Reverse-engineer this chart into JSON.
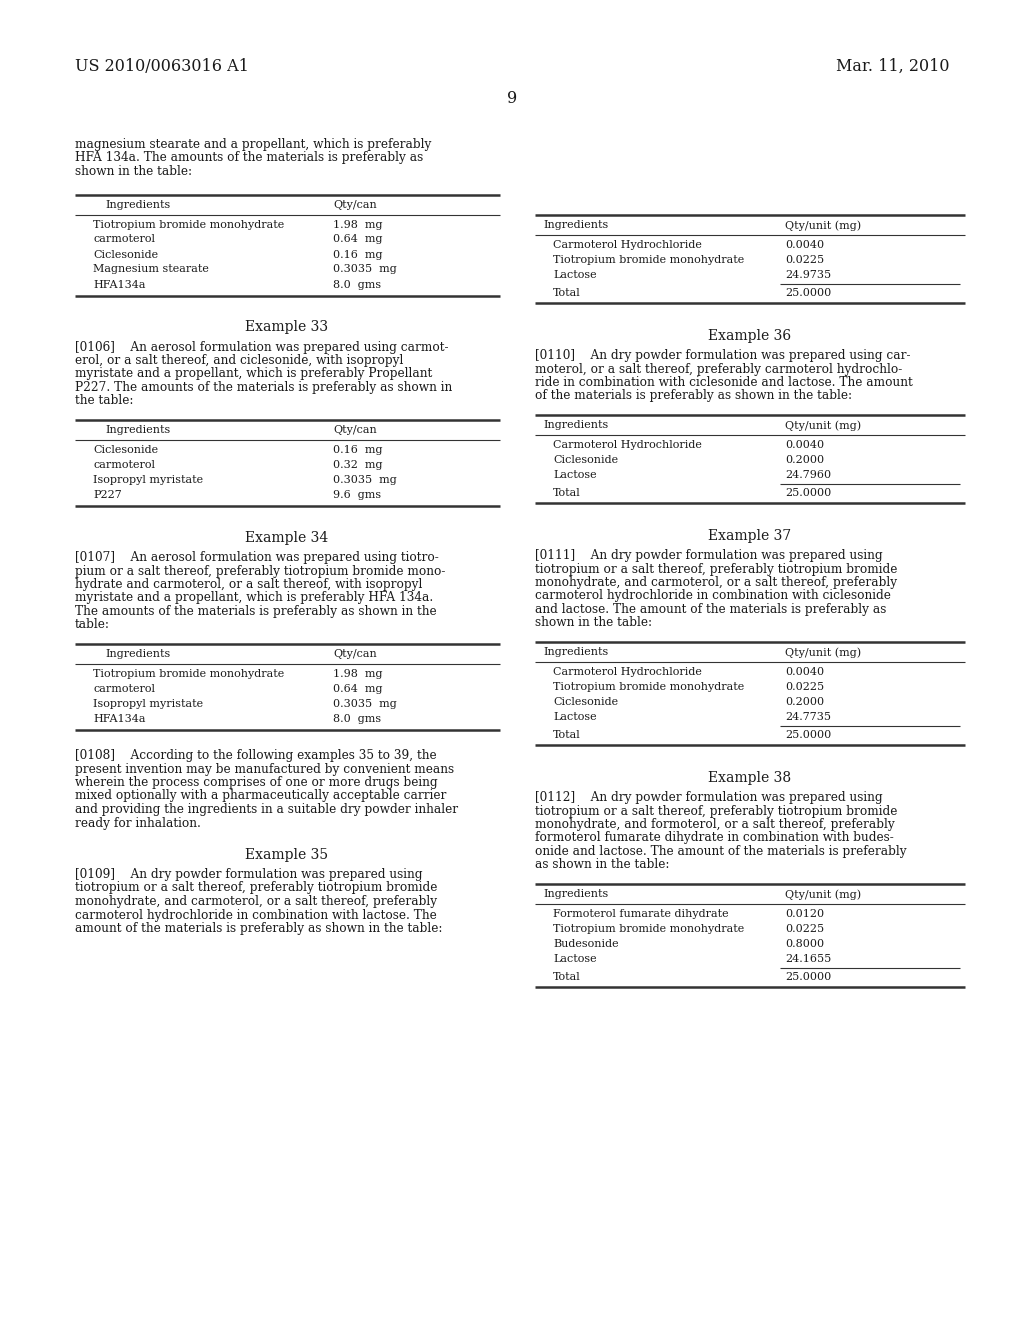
{
  "bg_color": "#ffffff",
  "header_left": "US 2010/0063016 A1",
  "header_right": "Mar. 11, 2010",
  "page_number": "9",
  "left_column": {
    "intro_text": [
      "magnesium stearate and a propellant, which is preferably",
      "HFA 134a. The amounts of the materials is preferably as",
      "shown in the table:"
    ],
    "table1": {
      "header": [
        "Ingredients",
        "Qty/can"
      ],
      "rows": [
        [
          "Tiotropium bromide monohydrate",
          "1.98  mg"
        ],
        [
          "carmoterol",
          "0.64  mg"
        ],
        [
          "Ciclesonide",
          "0.16  mg"
        ],
        [
          "Magnesium stearate",
          "0.3035  mg"
        ],
        [
          "HFA134a",
          "8.0  gms"
        ]
      ]
    },
    "example33_title": "Example 33",
    "para33_lines": [
      "[0106]    An aerosol formulation was prepared using carmot-",
      "erol, or a salt thereof, and ciclesonide, with isopropyl",
      "myristate and a propellant, which is preferably Propellant",
      "P227. The amounts of the materials is preferably as shown in",
      "the table:"
    ],
    "table2": {
      "header": [
        "Ingredients",
        "Qty/can"
      ],
      "rows": [
        [
          "Ciclesonide",
          "0.16  mg"
        ],
        [
          "carmoterol",
          "0.32  mg"
        ],
        [
          "Isopropyl myristate",
          "0.3035  mg"
        ],
        [
          "P227",
          "9.6  gms"
        ]
      ]
    },
    "example34_title": "Example 34",
    "para34_lines": [
      "[0107]    An aerosol formulation was prepared using tiotro-",
      "pium or a salt thereof, preferably tiotropium bromide mono-",
      "hydrate and carmoterol, or a salt thereof, with isopropyl",
      "myristate and a propellant, which is preferably HFA 134a.",
      "The amounts of the materials is preferably as shown in the",
      "table:"
    ],
    "table3": {
      "header": [
        "Ingredients",
        "Qty/can"
      ],
      "rows": [
        [
          "Tiotropium bromide monohydrate",
          "1.98  mg"
        ],
        [
          "carmoterol",
          "0.64  mg"
        ],
        [
          "Isopropyl myristate",
          "0.3035  mg"
        ],
        [
          "HFA134a",
          "8.0  gms"
        ]
      ]
    },
    "para108_lines": [
      "[0108]    According to the following examples 35 to 39, the",
      "present invention may be manufactured by convenient means",
      "wherein the process comprises of one or more drugs being",
      "mixed optionally with a pharmaceutically acceptable carrier",
      "and providing the ingredients in a suitable dry powder inhaler",
      "ready for inhalation."
    ],
    "example35_title": "Example 35",
    "para109_lines": [
      "[0109]    An dry powder formulation was prepared using",
      "tiotropium or a salt thereof, preferably tiotropium bromide",
      "monohydrate, and carmoterol, or a salt thereof, preferably",
      "carmoterol hydrochloride in combination with lactose. The",
      "amount of the materials is preferably as shown in the table:"
    ]
  },
  "right_column": {
    "table35": {
      "header": [
        "Ingredients",
        "Qty/unit (mg)"
      ],
      "rows": [
        [
          "Carmoterol Hydrochloride",
          "0.0040"
        ],
        [
          "Tiotropium bromide monohydrate",
          "0.0225"
        ],
        [
          "Lactose",
          "24.9735"
        ]
      ],
      "total": [
        "Total",
        "25.0000"
      ]
    },
    "example36_title": "Example 36",
    "para110_lines": [
      "[0110]    An dry powder formulation was prepared using car-",
      "moterol, or a salt thereof, preferably carmoterol hydrochlo-",
      "ride in combination with ciclesonide and lactose. The amount",
      "of the materials is preferably as shown in the table:"
    ],
    "table36": {
      "header": [
        "Ingredients",
        "Qty/unit (mg)"
      ],
      "rows": [
        [
          "Carmoterol Hydrochloride",
          "0.0040"
        ],
        [
          "Ciclesonide",
          "0.2000"
        ],
        [
          "Lactose",
          "24.7960"
        ]
      ],
      "total": [
        "Total",
        "25.0000"
      ]
    },
    "example37_title": "Example 37",
    "para111_lines": [
      "[0111]    An dry powder formulation was prepared using",
      "tiotropium or a salt thereof, preferably tiotropium bromide",
      "monohydrate, and carmoterol, or a salt thereof, preferably",
      "carmoterol hydrochloride in combination with ciclesonide",
      "and lactose. The amount of the materials is preferably as",
      "shown in the table:"
    ],
    "table37": {
      "header": [
        "Ingredients",
        "Qty/unit (mg)"
      ],
      "rows": [
        [
          "Carmoterol Hydrochloride",
          "0.0040"
        ],
        [
          "Tiotropium bromide monohydrate",
          "0.0225"
        ],
        [
          "Ciclesonide",
          "0.2000"
        ],
        [
          "Lactose",
          "24.7735"
        ]
      ],
      "total": [
        "Total",
        "25.0000"
      ]
    },
    "example38_title": "Example 38",
    "para112_lines": [
      "[0112]    An dry powder formulation was prepared using",
      "tiotropium or a salt thereof, preferably tiotropium bromide",
      "monohydrate, and formoterol, or a salt thereof, preferably",
      "formoterol fumarate dihydrate in combination with budes-",
      "onide and lactose. The amount of the materials is preferably",
      "as shown in the table:"
    ],
    "table38": {
      "header": [
        "Ingredients",
        "Qty/unit (mg)"
      ],
      "rows": [
        [
          "Formoterol fumarate dihydrate",
          "0.0120"
        ],
        [
          "Tiotropium bromide monohydrate",
          "0.0225"
        ],
        [
          "Budesonide",
          "0.8000"
        ],
        [
          "Lactose",
          "24.1655"
        ]
      ],
      "total": [
        "Total",
        "25.0000"
      ]
    }
  }
}
